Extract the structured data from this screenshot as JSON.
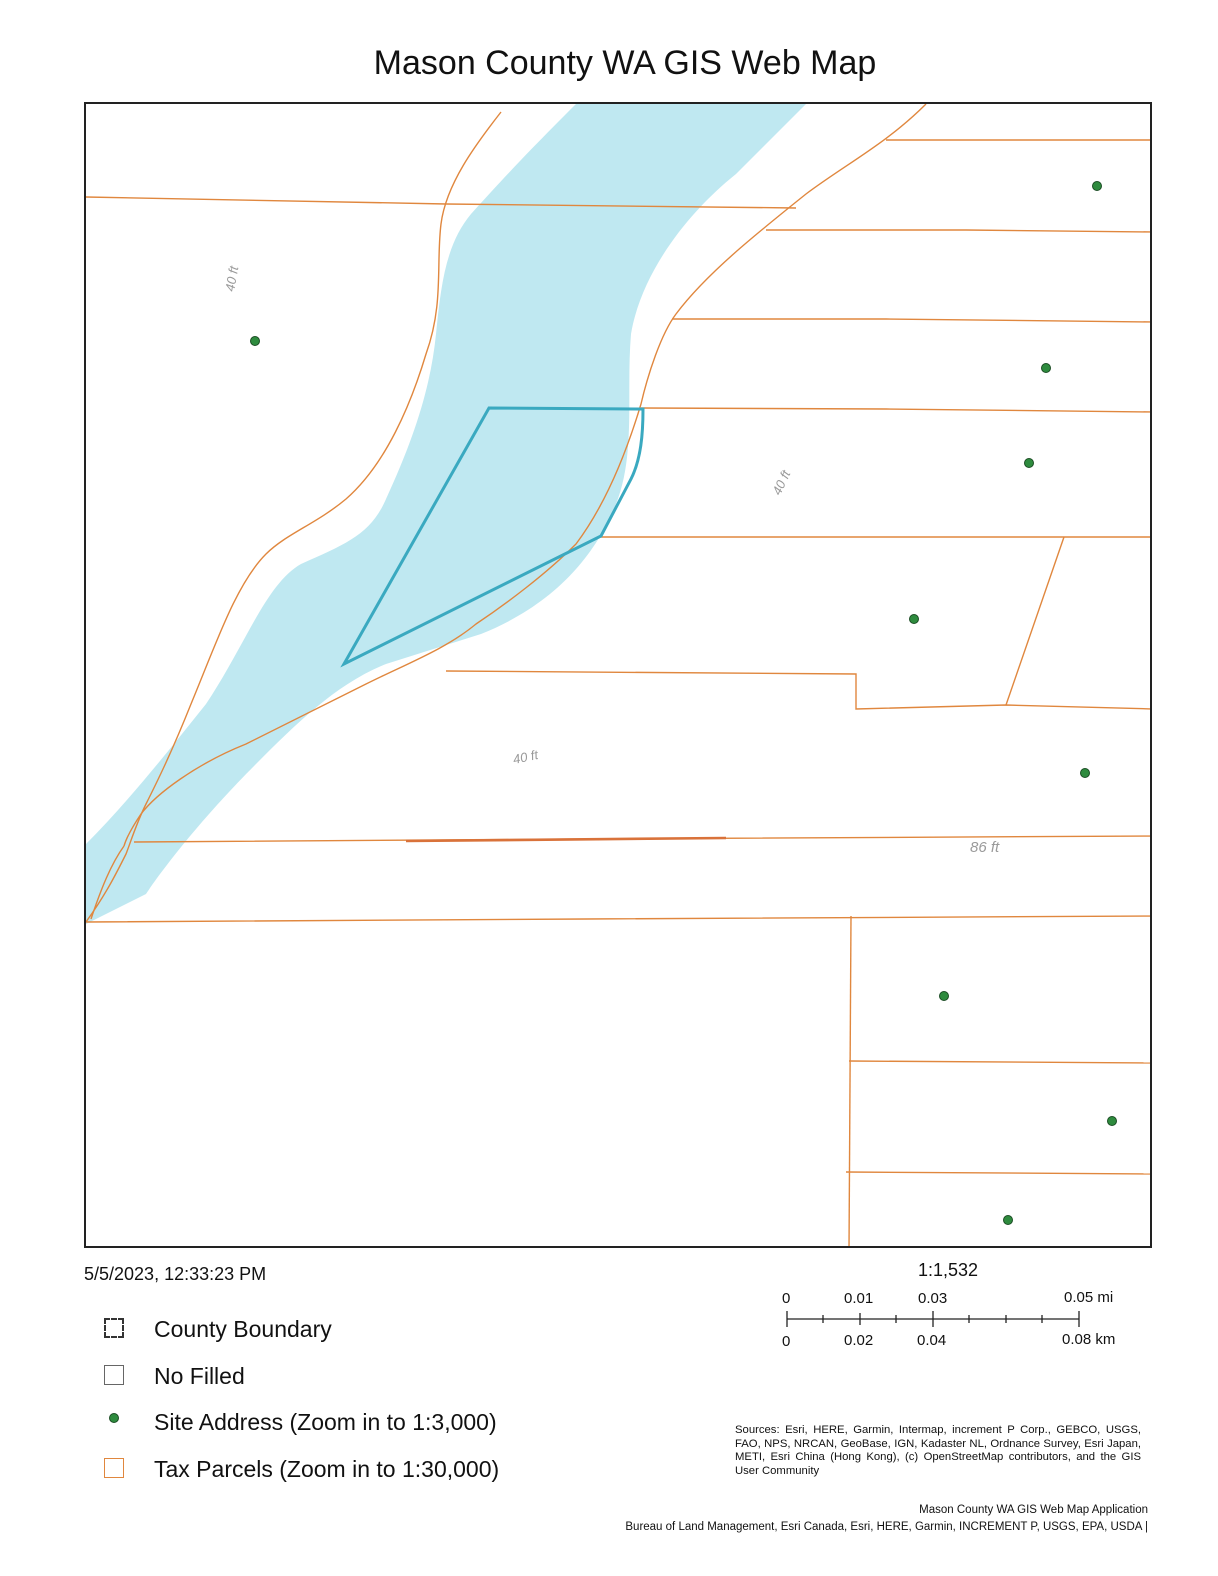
{
  "title": "Mason County WA GIS Web Map",
  "timestamp": "5/5/2023, 12:33:23 PM",
  "scale": {
    "ratio": "1:1,532",
    "miles_labels": [
      "0",
      "0.01",
      "0.03",
      "0.05 mi"
    ],
    "km_labels": [
      "0",
      "0.02",
      "0.04",
      "0.08 km"
    ]
  },
  "legend": [
    {
      "label": "County Boundary",
      "icon": "county-boundary-symbol"
    },
    {
      "label": "No Filled",
      "icon": "no-filled-symbol"
    },
    {
      "label": "Site Address (Zoom in to 1:3,000)",
      "icon": "site-address-symbol"
    },
    {
      "label": "Tax Parcels (Zoom in to 1:30,000)",
      "icon": "tax-parcel-symbol"
    }
  ],
  "map": {
    "dimension_labels": [
      "40 ft",
      "40 ft",
      "40 ft",
      "86 ft"
    ],
    "colors": {
      "water": "#bfe8f1",
      "parcel_line": "#e0873e",
      "selected_parcel": "#3aa9c0",
      "site_address": "#2e8b3e"
    }
  },
  "sources": "Sources: Esri, HERE, Garmin, Intermap, increment P Corp., GEBCO, USGS, FAO, NPS, NRCAN, GeoBase, IGN, Kadaster NL, Ordnance Survey, Esri Japan, METI, Esri China (Hong Kong), (c) OpenStreetMap contributors, and the GIS User Community",
  "app_name": "Mason County WA GIS Web Map Application",
  "credits": "Bureau of Land Management, Esri Canada, Esri, HERE, Garmin, INCREMENT P, USGS, EPA, USDA |"
}
